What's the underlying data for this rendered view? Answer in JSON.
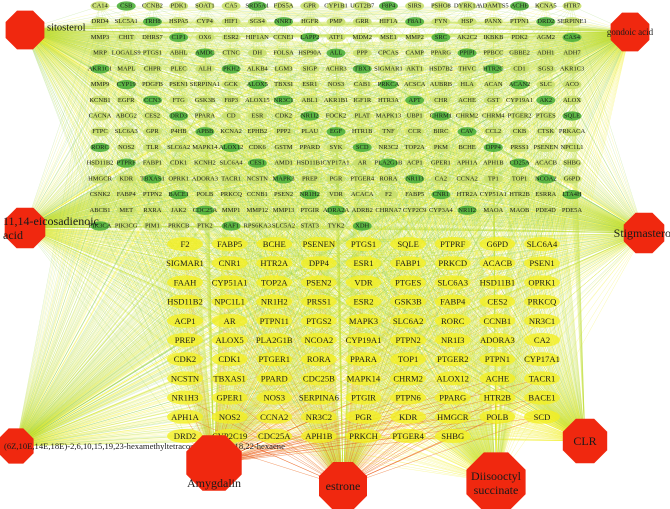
{
  "network": {
    "compounds": [
      {
        "id": "sitosterol",
        "label": "sitosterol",
        "label_side": "right"
      },
      {
        "id": "gondoic",
        "label": "gondoic acid",
        "label_side": "inside"
      },
      {
        "id": "eicosadienoic",
        "label": "11,14-eicosadienoic acid",
        "label_side": "right"
      },
      {
        "id": "stigmasterol",
        "label": "Stigmasterol",
        "label_side": "left"
      },
      {
        "id": "hexaene",
        "label": "(6Z,10E,14E,18E)-2,6,10,15,19,23-hexamethyltetracosa-2,6,10,14,18,22-hexaene",
        "label_side": "right"
      },
      {
        "id": "clr",
        "label": "CLR",
        "label_side": "inside"
      },
      {
        "id": "amygdalin",
        "label": "Amygdalin",
        "label_side": "below"
      },
      {
        "id": "estrone",
        "label": "estrone",
        "label_side": "inside"
      },
      {
        "id": "diisooctyl",
        "label": "Diisooctyl succinate",
        "label_side": "inside"
      }
    ],
    "outer_targets": [
      "CA14",
      "CSB",
      "CCNB2",
      "PDK1",
      "SOAT1",
      "CA5",
      "SRD5A1",
      "FDS5A",
      "GPR",
      "CYP1B1",
      "UGT2B7",
      "F8P4",
      "SIRS",
      "PSHO8",
      "DYRK1A",
      "ADAMTS5",
      "ACHE",
      "KCNA5",
      "HTR7",
      "DRD4",
      "SLC5A1",
      "TRH8",
      "HSPA5",
      "CYP4",
      "HIF1",
      "SGS4",
      "NNRT",
      "HGFR",
      "PMP",
      "GRR",
      "HIF1A",
      "F8A1",
      "FYN",
      "HSP",
      "PANX",
      "PTPN1",
      "DRD2",
      "SERPINE1",
      "MMP3",
      "CHIT",
      "DHRS7",
      "C1P1",
      "OX6",
      "ESR2",
      "HIF1AN",
      "CCNE1",
      "LAPP2",
      "ATF1",
      "MDM2",
      "MSE1",
      "MMP2",
      "SRC",
      "AK2C2",
      "IKBKB",
      "PDK2",
      "AGM2",
      "CAS4",
      "MRP",
      "LOGALS9",
      "PTGS1",
      "ABHL",
      "AMDC",
      "CTNC",
      "DH",
      "FOLSA",
      "HSP90A",
      "ALL",
      "PPP",
      "CPCAS",
      "CAMP",
      "PPARG",
      "PPIPI",
      "PPBCC",
      "GBBE2",
      "ADH1",
      "ADH7",
      "AKR1C1",
      "MAPL",
      "CHPR",
      "PLEC",
      "ALH",
      "PKH2",
      "ALKB4",
      "LGM3",
      "SIGP",
      "ACHR3",
      "TBX3",
      "SIGMAR1",
      "AKT1",
      "HSD7B2",
      "THVC",
      "HTR2C",
      "CD1",
      "SGS3",
      "AKR1C3",
      "MMP9",
      "CYP19",
      "PDGFB",
      "PSEN1",
      "SERPINA1",
      "GCK",
      "ALOX5",
      "TBXSI",
      "ESR1",
      "NOS3",
      "CAB1",
      "PRKCA",
      "ACSCA",
      "AUBRB",
      "HLA",
      "ACAN",
      "ACAN2",
      "SLC",
      "ACO",
      "KCNB1",
      "EGFR",
      "CCN3",
      "FTG",
      "GSK3B",
      "F8P3",
      "ALOX15",
      "NR3C1",
      "ABL1",
      "AKR1B1",
      "IGF1R",
      "HTR3A",
      "APT",
      "CHR",
      "ACHE",
      "GST",
      "CYP19A1",
      "AK2",
      "ALOX",
      "CACNA",
      "ABCG2",
      "CES2",
      "DRD3",
      "PPARA",
      "CD",
      "ESR",
      "CDK2",
      "NR1I2",
      "FOCK2",
      "PLAT",
      "MAPK13",
      "UBP1",
      "CHRM1",
      "CHRM2",
      "CHRM4",
      "PTGER2",
      "PTGES",
      "SQLE",
      "FTPC",
      "SLC6A3",
      "GPR",
      "P4HB",
      "APBB",
      "KCNA2",
      "EPHB2",
      "PPP2",
      "PLAU",
      "EGF",
      "HTR1B",
      "TNF",
      "CCR",
      "BIRC",
      "CAV",
      "CCL2",
      "CKB",
      "CTSK",
      "PRKACA",
      "RORC",
      "NOS2",
      "TLR",
      "SLC6A2",
      "MAPK14",
      "ALOX12",
      "CDK6",
      "GSTM",
      "PPARD",
      "SYK",
      "SCD",
      "NR3C2",
      "TOP2A",
      "PKM",
      "BCHE",
      "DPP4",
      "PRSS1",
      "PSENEN",
      "NPC1L1",
      "HSD11B2",
      "PTPRF",
      "FABP1",
      "CDK1",
      "KCNH2",
      "SLC6A4",
      "CES1",
      "AMD1",
      "HSD11B1",
      "CYP17A1",
      "AR",
      "PLA2G1B",
      "ACP1",
      "GPER1",
      "APH1A",
      "APH1B",
      "CD25A",
      "ACACB",
      "SHBG",
      "HMGCR",
      "KDR",
      "TBXAS1",
      "OPRK1",
      "ADORA3",
      "TACR1",
      "NCSTN",
      "MAPK3",
      "PREP",
      "PGR",
      "PTGER4",
      "RORA",
      "NR1I3",
      "CA2",
      "CCNA2",
      "TP1",
      "TOP1",
      "NCOA2",
      "G6PD",
      "CSNK2",
      "FABP4",
      "PTPN2",
      "BACE1",
      "POLB",
      "PRKCQ",
      "CCNB1",
      "PSEN2",
      "NR1H2",
      "VDR",
      "ACACA",
      "F2",
      "FABP5",
      "CNR1",
      "HTR2A",
      "CYP51A1",
      "HTR2B",
      "ESRRA",
      "LTA4H",
      "ABCB1",
      "MET",
      "RXRA",
      "JAK2",
      "CDC25A",
      "MMP1",
      "MMP12",
      "MMP13",
      "PTGIR",
      "ADRA2A",
      "ADRB2",
      "CHRNA7",
      "CYP2C9",
      "CYP3A4",
      "NR1I2",
      "MAOA",
      "MAOB",
      "PDE4D",
      "PDE5A",
      "PIK3CA",
      "PIK3CG",
      "PIM1",
      "PRKCB",
      "PTK2",
      "RAF1",
      "RPS6KA3",
      "SLC5A2",
      "STAT3",
      "TYK2",
      "XDH"
    ],
    "core_targets": [
      "F2",
      "FABP5",
      "BCHE",
      "PSENEN",
      "PTGS1",
      "SQLE",
      "PTPRF",
      "G6PD",
      "SLC6A4",
      "SIGMAR1",
      "CNR1",
      "HTR2A",
      "DPP4",
      "ESR1",
      "FABP1",
      "PRKCD",
      "ACACB",
      "PSEN1",
      "FAAH",
      "CYP51A1",
      "TOP2A",
      "PSEN2",
      "VDR",
      "PTGES",
      "SLC6A3",
      "HSD11B1",
      "OPRK1",
      "HSD11B2",
      "NPC1L1",
      "NR1H2",
      "PRSS1",
      "ESR2",
      "GSK3B",
      "FABP4",
      "CES2",
      "PRKCQ",
      "ACP1",
      "AR",
      "PTPN11",
      "PTGS2",
      "MAPK3",
      "SLC6A2",
      "RORC",
      "CCNB1",
      "NR3C1",
      "PREP",
      "ALOX5",
      "PLA2G1B",
      "NCOA2",
      "CYP19A1",
      "PTPN2",
      "NR1I3",
      "ADORA3",
      "CA2",
      "CDK2",
      "CDK1",
      "PTGER1",
      "RORA",
      "PPARA",
      "TOP1",
      "PTGER2",
      "PTPN1",
      "CYP17A1",
      "NCSTN",
      "TBXAS1",
      "PPARD",
      "CDC25B",
      "MAPK14",
      "CHRM2",
      "ALOX12",
      "ACHE",
      "TACR1",
      "NR1H3",
      "GPER1",
      "NOS3",
      "SERPINA6",
      "PTGIR",
      "PTPN6",
      "PPARG",
      "HTR2B",
      "BACE1",
      "APH1A",
      "NOS2",
      "CCNA2",
      "NR3C2",
      "PGR",
      "KDR",
      "HMGCR",
      "POLB",
      "SCD",
      "DRD2",
      "CYP2C19",
      "CDC25A",
      "APH1B",
      "PRKCH",
      "PTGER4",
      "SHBG"
    ],
    "colors": {
      "compound_fill": "#f0280f",
      "target_fill_light": "#c7de6a",
      "target_fill_dark": "#4caf3a",
      "edge_yellow": "#f2ef22",
      "edge_green": "#8fcf4a",
      "edge_orange": "#f39a1e",
      "edge_red": "#e8431b"
    }
  }
}
